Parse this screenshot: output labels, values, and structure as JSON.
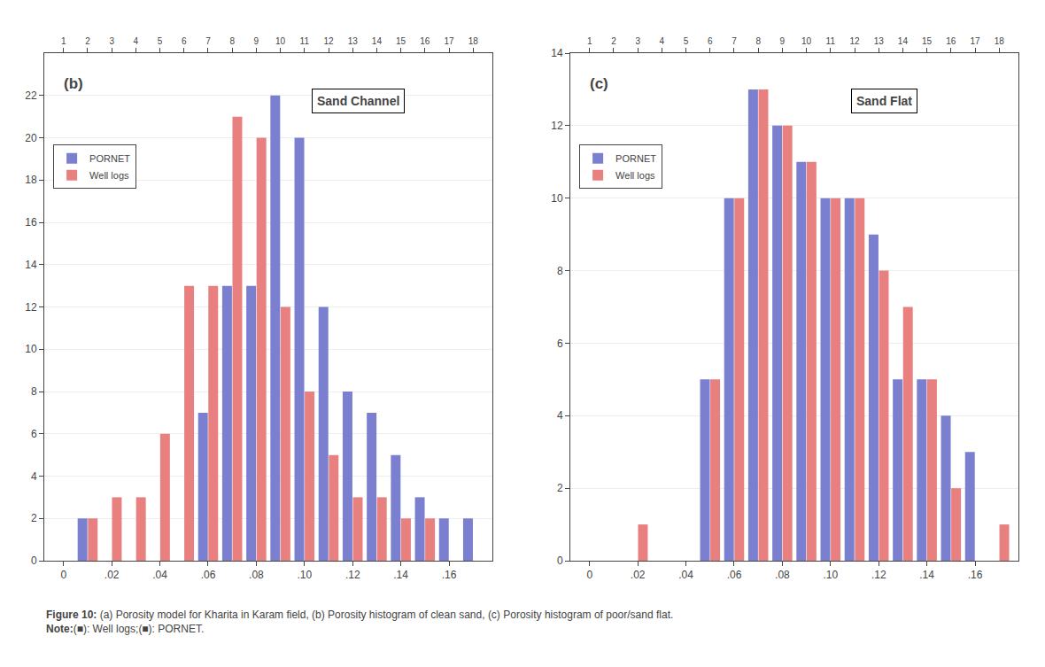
{
  "chart_data": [
    {
      "type": "bar",
      "title": "Sand Channel",
      "annotations": [
        "(b)"
      ],
      "x": [
        0.0,
        0.01,
        0.02,
        0.03,
        0.04,
        0.05,
        0.06,
        0.07,
        0.08,
        0.09,
        0.1,
        0.11,
        0.12,
        0.13,
        0.14,
        0.15,
        0.16,
        0.17
      ],
      "series": [
        {
          "name": "PORNET",
          "color": "#7b7fcf",
          "values": [
            0,
            2,
            0,
            0,
            0,
            0,
            7,
            13,
            13,
            22,
            20,
            12,
            8,
            7,
            5,
            3,
            2,
            2
          ]
        },
        {
          "name": "Well logs",
          "color": "#e88080",
          "values": [
            0,
            2,
            3,
            3,
            6,
            13,
            13,
            21,
            20,
            12,
            8,
            5,
            3,
            3,
            2,
            2,
            0,
            0
          ]
        }
      ],
      "xlim": [
        -0.008,
        0.178
      ],
      "xticks": [
        0,
        {
          "value": 0.02,
          "label": ".02"
        },
        {
          "value": 0.04,
          "label": ".04"
        },
        {
          "value": 0.06,
          "label": ".06"
        },
        {
          "value": 0.08,
          "label": ".08"
        },
        {
          "value": 0.1,
          "label": ".10"
        },
        {
          "value": 0.12,
          "label": ".12"
        },
        {
          "value": 0.14,
          "label": ".14"
        },
        {
          "value": 0.16,
          "label": ".16"
        }
      ],
      "x2lim": [
        -0.008,
        0.178
      ],
      "x2ticks": [
        {
          "value": 0.0,
          "label": "1"
        },
        {
          "value": 0.01,
          "label": "2"
        },
        {
          "value": 0.02,
          "label": "3"
        },
        {
          "value": 0.03,
          "label": "4"
        },
        {
          "value": 0.04,
          "label": "5"
        },
        {
          "value": 0.05,
          "label": "6"
        },
        {
          "value": 0.06,
          "label": "7"
        },
        {
          "value": 0.07,
          "label": "8"
        },
        {
          "value": 0.08,
          "label": "9"
        },
        {
          "value": 0.09,
          "label": "10"
        },
        {
          "value": 0.1,
          "label": "11"
        },
        {
          "value": 0.11,
          "label": "12"
        },
        {
          "value": 0.12,
          "label": "13"
        },
        {
          "value": 0.13,
          "label": "14"
        },
        {
          "value": 0.14,
          "label": "15"
        },
        {
          "value": 0.15,
          "label": "16"
        },
        {
          "value": 0.16,
          "label": "17"
        },
        {
          "value": 0.17,
          "label": "18"
        }
      ],
      "ylim": [
        0,
        24
      ],
      "yticks": [
        0,
        2,
        4,
        6,
        8,
        10,
        12,
        14,
        16,
        18,
        20,
        22
      ],
      "grid": true,
      "legend": "upper left"
    },
    {
      "type": "bar",
      "title": "Sand Flat",
      "annotations": [
        "(c)"
      ],
      "x": [
        0.0,
        0.01,
        0.02,
        0.03,
        0.04,
        0.05,
        0.06,
        0.07,
        0.08,
        0.09,
        0.1,
        0.11,
        0.12,
        0.13,
        0.14,
        0.15,
        0.16,
        0.17
      ],
      "series": [
        {
          "name": "PORNET",
          "color": "#7b7fcf",
          "values": [
            0,
            0,
            0,
            0,
            0,
            5,
            10,
            13,
            12,
            11,
            10,
            10,
            9,
            5,
            5,
            4,
            3,
            0
          ]
        },
        {
          "name": "Well logs",
          "color": "#e88080",
          "values": [
            0,
            0,
            1,
            0,
            0,
            5,
            10,
            13,
            12,
            11,
            10,
            10,
            8,
            7,
            5,
            2,
            0,
            1
          ]
        }
      ],
      "xlim": [
        -0.008,
        0.178
      ],
      "xticks": [
        0,
        {
          "value": 0.02,
          "label": ".02"
        },
        {
          "value": 0.04,
          "label": ".04"
        },
        {
          "value": 0.06,
          "label": ".06"
        },
        {
          "value": 0.08,
          "label": ".08"
        },
        {
          "value": 0.1,
          "label": ".10"
        },
        {
          "value": 0.12,
          "label": ".12"
        },
        {
          "value": 0.14,
          "label": ".14"
        },
        {
          "value": 0.16,
          "label": ".16"
        }
      ],
      "x2lim": [
        -0.008,
        0.178
      ],
      "x2ticks": [
        {
          "value": 0.0,
          "label": "1"
        },
        {
          "value": 0.01,
          "label": "2"
        },
        {
          "value": 0.02,
          "label": "3"
        },
        {
          "value": 0.03,
          "label": "4"
        },
        {
          "value": 0.04,
          "label": "5"
        },
        {
          "value": 0.05,
          "label": "6"
        },
        {
          "value": 0.06,
          "label": "7"
        },
        {
          "value": 0.07,
          "label": "8"
        },
        {
          "value": 0.08,
          "label": "9"
        },
        {
          "value": 0.09,
          "label": "10"
        },
        {
          "value": 0.1,
          "label": "11"
        },
        {
          "value": 0.11,
          "label": "12"
        },
        {
          "value": 0.12,
          "label": "13"
        },
        {
          "value": 0.13,
          "label": "14"
        },
        {
          "value": 0.14,
          "label": "15"
        },
        {
          "value": 0.15,
          "label": "16"
        },
        {
          "value": 0.16,
          "label": "17"
        },
        {
          "value": 0.17,
          "label": "18"
        }
      ],
      "ylim": [
        0,
        14
      ],
      "yticks": [
        0,
        2,
        4,
        6,
        8,
        10,
        12,
        14
      ],
      "grid": true,
      "legend": "upper left"
    }
  ],
  "caption": {
    "bold": "Figure 10:",
    "text": " (a) Porosity model for Kharita in Karam field, (b) Porosity histogram of clean sand, (c) Porosity histogram of poor/sand flat. ",
    "note_bold": "Note:",
    "note_text": "(■): Well logs;(■): PORNET."
  }
}
